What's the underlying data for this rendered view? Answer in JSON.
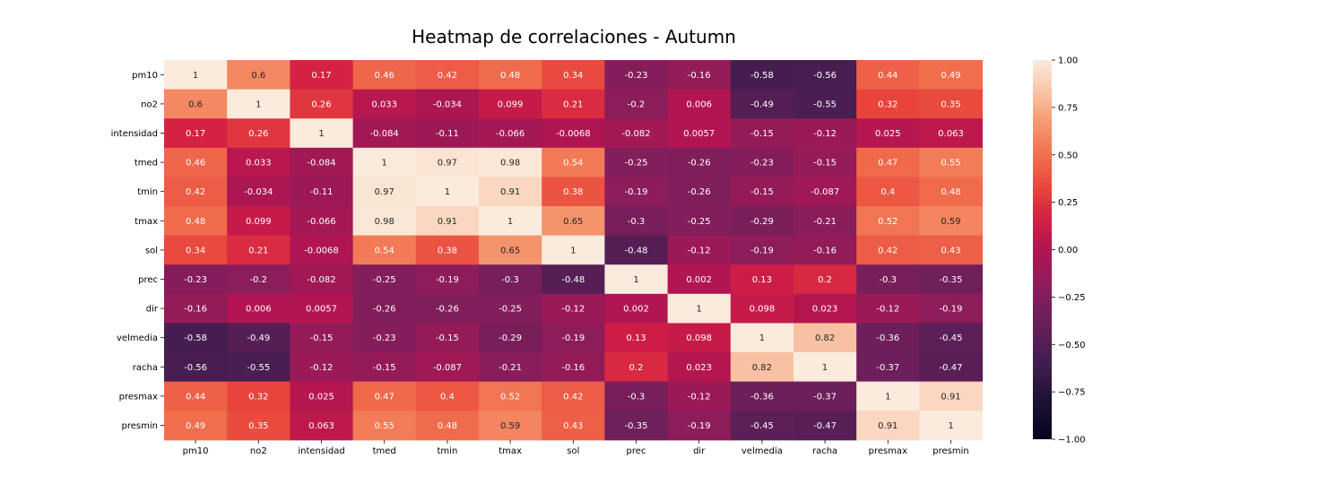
{
  "chart_data": {
    "type": "heatmap",
    "title": "Heatmap de correlaciones - Autumn",
    "xlabel": "",
    "ylabel": "",
    "colormap": "rocket",
    "vmin": -1.0,
    "vmax": 1.0,
    "x_labels": [
      "pm10",
      "no2",
      "intensidad",
      "tmed",
      "tmin",
      "tmax",
      "sol",
      "prec",
      "dir",
      "velmedia",
      "racha",
      "presmax",
      "presmin"
    ],
    "y_labels": [
      "pm10",
      "no2",
      "intensidad",
      "tmed",
      "tmin",
      "tmax",
      "sol",
      "prec",
      "dir",
      "velmedia",
      "racha",
      "presmax",
      "presmin"
    ],
    "values": [
      [
        1,
        0.6,
        0.17,
        0.46,
        0.42,
        0.48,
        0.34,
        -0.23,
        -0.16,
        -0.58,
        -0.56,
        0.44,
        0.49
      ],
      [
        0.6,
        1,
        0.26,
        0.033,
        -0.034,
        0.099,
        0.21,
        -0.2,
        0.006,
        -0.49,
        -0.55,
        0.32,
        0.35
      ],
      [
        0.17,
        0.26,
        1,
        -0.084,
        -0.11,
        -0.066,
        -0.0068,
        -0.082,
        0.0057,
        -0.15,
        -0.12,
        0.025,
        0.063
      ],
      [
        0.46,
        0.033,
        -0.084,
        1,
        0.97,
        0.98,
        0.54,
        -0.25,
        -0.26,
        -0.23,
        -0.15,
        0.47,
        0.55
      ],
      [
        0.42,
        -0.034,
        -0.11,
        0.97,
        1,
        0.91,
        0.38,
        -0.19,
        -0.26,
        -0.15,
        -0.087,
        0.4,
        0.48
      ],
      [
        0.48,
        0.099,
        -0.066,
        0.98,
        0.91,
        1,
        0.65,
        -0.3,
        -0.25,
        -0.29,
        -0.21,
        0.52,
        0.59
      ],
      [
        0.34,
        0.21,
        -0.0068,
        0.54,
        0.38,
        0.65,
        1,
        -0.48,
        -0.12,
        -0.19,
        -0.16,
        0.42,
        0.43
      ],
      [
        -0.23,
        -0.2,
        -0.082,
        -0.25,
        -0.19,
        -0.3,
        -0.48,
        1,
        0.002,
        0.13,
        0.2,
        -0.3,
        -0.35
      ],
      [
        -0.16,
        0.006,
        0.0057,
        -0.26,
        -0.26,
        -0.25,
        -0.12,
        0.002,
        1,
        0.098,
        0.023,
        -0.12,
        -0.19
      ],
      [
        -0.58,
        -0.49,
        -0.15,
        -0.23,
        -0.15,
        -0.29,
        -0.19,
        0.13,
        0.098,
        1,
        0.82,
        -0.36,
        -0.45
      ],
      [
        -0.56,
        -0.55,
        -0.12,
        -0.15,
        -0.087,
        -0.21,
        -0.16,
        0.2,
        0.023,
        0.82,
        1,
        -0.37,
        -0.47
      ],
      [
        0.44,
        0.32,
        0.025,
        0.47,
        0.4,
        0.52,
        0.42,
        -0.3,
        -0.12,
        -0.36,
        -0.37,
        1,
        0.91
      ],
      [
        0.49,
        0.35,
        0.063,
        0.55,
        0.48,
        0.59,
        0.43,
        -0.35,
        -0.19,
        -0.45,
        -0.47,
        0.91,
        1
      ]
    ],
    "colorbar_ticks": [
      "1.00",
      "0.75",
      "0.50",
      "0.25",
      "0.00",
      "−0.25",
      "−0.50",
      "−0.75",
      "−1.00"
    ],
    "colorbar_values": [
      1.0,
      0.75,
      0.5,
      0.25,
      0.0,
      -0.25,
      -0.5,
      -0.75,
      -1.0
    ]
  }
}
